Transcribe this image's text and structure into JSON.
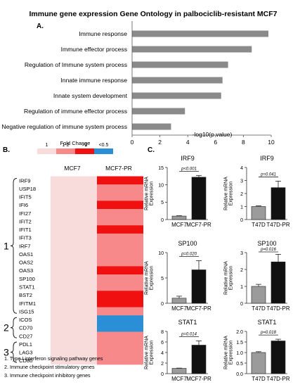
{
  "figure_title": "Immune gene expression Gene Ontology in palbociclib-resistant  MCF7",
  "panel_a": {
    "letter": "A.",
    "xlabel": "-log10(p value)",
    "ticks": [
      "0",
      "2",
      "4",
      "6",
      "8",
      "10"
    ]
  },
  "panel_b": {
    "letter": "B.",
    "legend_title": "Fold Change",
    "legend": [
      {
        "label": "1",
        "color": "#f8dcdc"
      },
      {
        "label": "1-2",
        "color": "#f7898a"
      },
      {
        "label": ">2",
        "color": "#f01010"
      },
      {
        "label": "<0.5",
        "color": "#2b8fd8"
      }
    ],
    "col_labels": [
      "MCF7",
      "MCF7-PR"
    ],
    "genes": [
      "IRF9",
      "USP18",
      "IFIT5",
      "IFI6",
      "IFI27",
      "IFIT2",
      "IFIT1",
      "IFIT3",
      "IRF7",
      "OAS1",
      "OAS2",
      "OAS3",
      "SP100",
      "STAT1",
      "BST2",
      "IFITM1",
      "ISG15",
      "ICOS",
      "CD70",
      "CD27",
      "PDL1",
      "LAG3",
      "CD80"
    ],
    "pr_levels": [
      ">2",
      "1-2",
      "1-2",
      ">2",
      "1-2",
      "1-2",
      ">2",
      "1-2",
      "1-2",
      "1-2",
      "1-2",
      ">2",
      "1-2",
      "1-2",
      ">2",
      ">2",
      "1-2",
      "<0.5",
      "<0.5",
      "1-2",
      "1-2",
      "1-2",
      "1-2"
    ],
    "groups": [
      {
        "num": "1",
        "start": 0,
        "end": 16
      },
      {
        "num": "2",
        "start": 17,
        "end": 19
      },
      {
        "num": "3",
        "start": 20,
        "end": 22
      }
    ],
    "footnotes": [
      "1. Type I interferon signaling pathway genes",
      "2. Immune checkpoint  stimulatory genes",
      "3. Immune checkpoint inhibitory genes"
    ]
  },
  "panel_c": {
    "letter": "C.",
    "ylabel_top": "Relative mRNA",
    "ylabel_bottom": "Expression"
  },
  "chart_data": [
    {
      "type": "bar",
      "title": "",
      "categories": [
        "Immune response",
        "Immune effector process",
        "Regulation of Immune system process",
        "Innate immune response",
        "Innate system development",
        "Regulation of immune effector process",
        "Negative regulation of immune system process"
      ],
      "values": [
        9.8,
        8.6,
        6.9,
        6.5,
        6.4,
        3.8,
        2.8
      ],
      "xlabel": "-log10(p value)",
      "ylabel": "",
      "xlim": [
        0,
        10
      ],
      "orientation": "horizontal",
      "bar_color": "#8a8a8a"
    },
    {
      "type": "bar",
      "title": "IRF9",
      "categories": [
        "MCF7",
        "MCF7-PR"
      ],
      "values": [
        1,
        12.2
      ],
      "errors": [
        0.1,
        0.5
      ],
      "ylim": [
        0,
        15
      ],
      "ticks": [
        "0",
        "5",
        "10",
        "15"
      ],
      "pvalue": "p<0.001",
      "ylabel": "Relative mRNA Expression"
    },
    {
      "type": "bar",
      "title": "IRF9",
      "categories": [
        "T47D",
        "T47D-PR"
      ],
      "values": [
        1,
        2.45
      ],
      "errors": [
        0.05,
        0.5
      ],
      "ylim": [
        0,
        4
      ],
      "ticks": [
        "0",
        "1",
        "2",
        "3",
        "4"
      ],
      "pvalue": "p=0.041",
      "ylabel": "Relative mRNA Expression"
    },
    {
      "type": "bar",
      "title": "SP100",
      "categories": [
        "MCF7",
        "MCF7-PR"
      ],
      "values": [
        1,
        6.6
      ],
      "errors": [
        0.4,
        1.8
      ],
      "ylim": [
        0,
        10
      ],
      "ticks": [
        "0",
        "5",
        "10"
      ],
      "pvalue": "p=0.020",
      "ylabel": "Relative mRNA Expression"
    },
    {
      "type": "bar",
      "title": "SP100",
      "categories": [
        "T47D",
        "T47D-PR"
      ],
      "values": [
        1,
        2.45
      ],
      "errors": [
        0.12,
        0.45
      ],
      "ylim": [
        0,
        3
      ],
      "ticks": [
        "0",
        "1",
        "2",
        "3"
      ],
      "pvalue": "p=0.016",
      "ylabel": "Relative mRNA Expression"
    },
    {
      "type": "bar",
      "title": "STAT1",
      "categories": [
        "MCF7",
        "MCF7-PR"
      ],
      "values": [
        1,
        5.4
      ],
      "errors": [
        0.05,
        0.8
      ],
      "ylim": [
        0,
        8
      ],
      "ticks": [
        "0",
        "2",
        "4",
        "6",
        "8"
      ],
      "pvalue": "p=0.014",
      "ylabel": "Relative mRNA Expression"
    },
    {
      "type": "bar",
      "title": "STAT1",
      "categories": [
        "T47D",
        "T47D-PR"
      ],
      "values": [
        1,
        1.55
      ],
      "errors": [
        0.04,
        0.08
      ],
      "ylim": [
        0,
        2
      ],
      "ticks": [
        "0.0",
        "0.5",
        "1.0",
        "1.5",
        "2.0"
      ],
      "pvalue": "p=0.018",
      "ylabel": "Relative mRNA Expression"
    }
  ]
}
